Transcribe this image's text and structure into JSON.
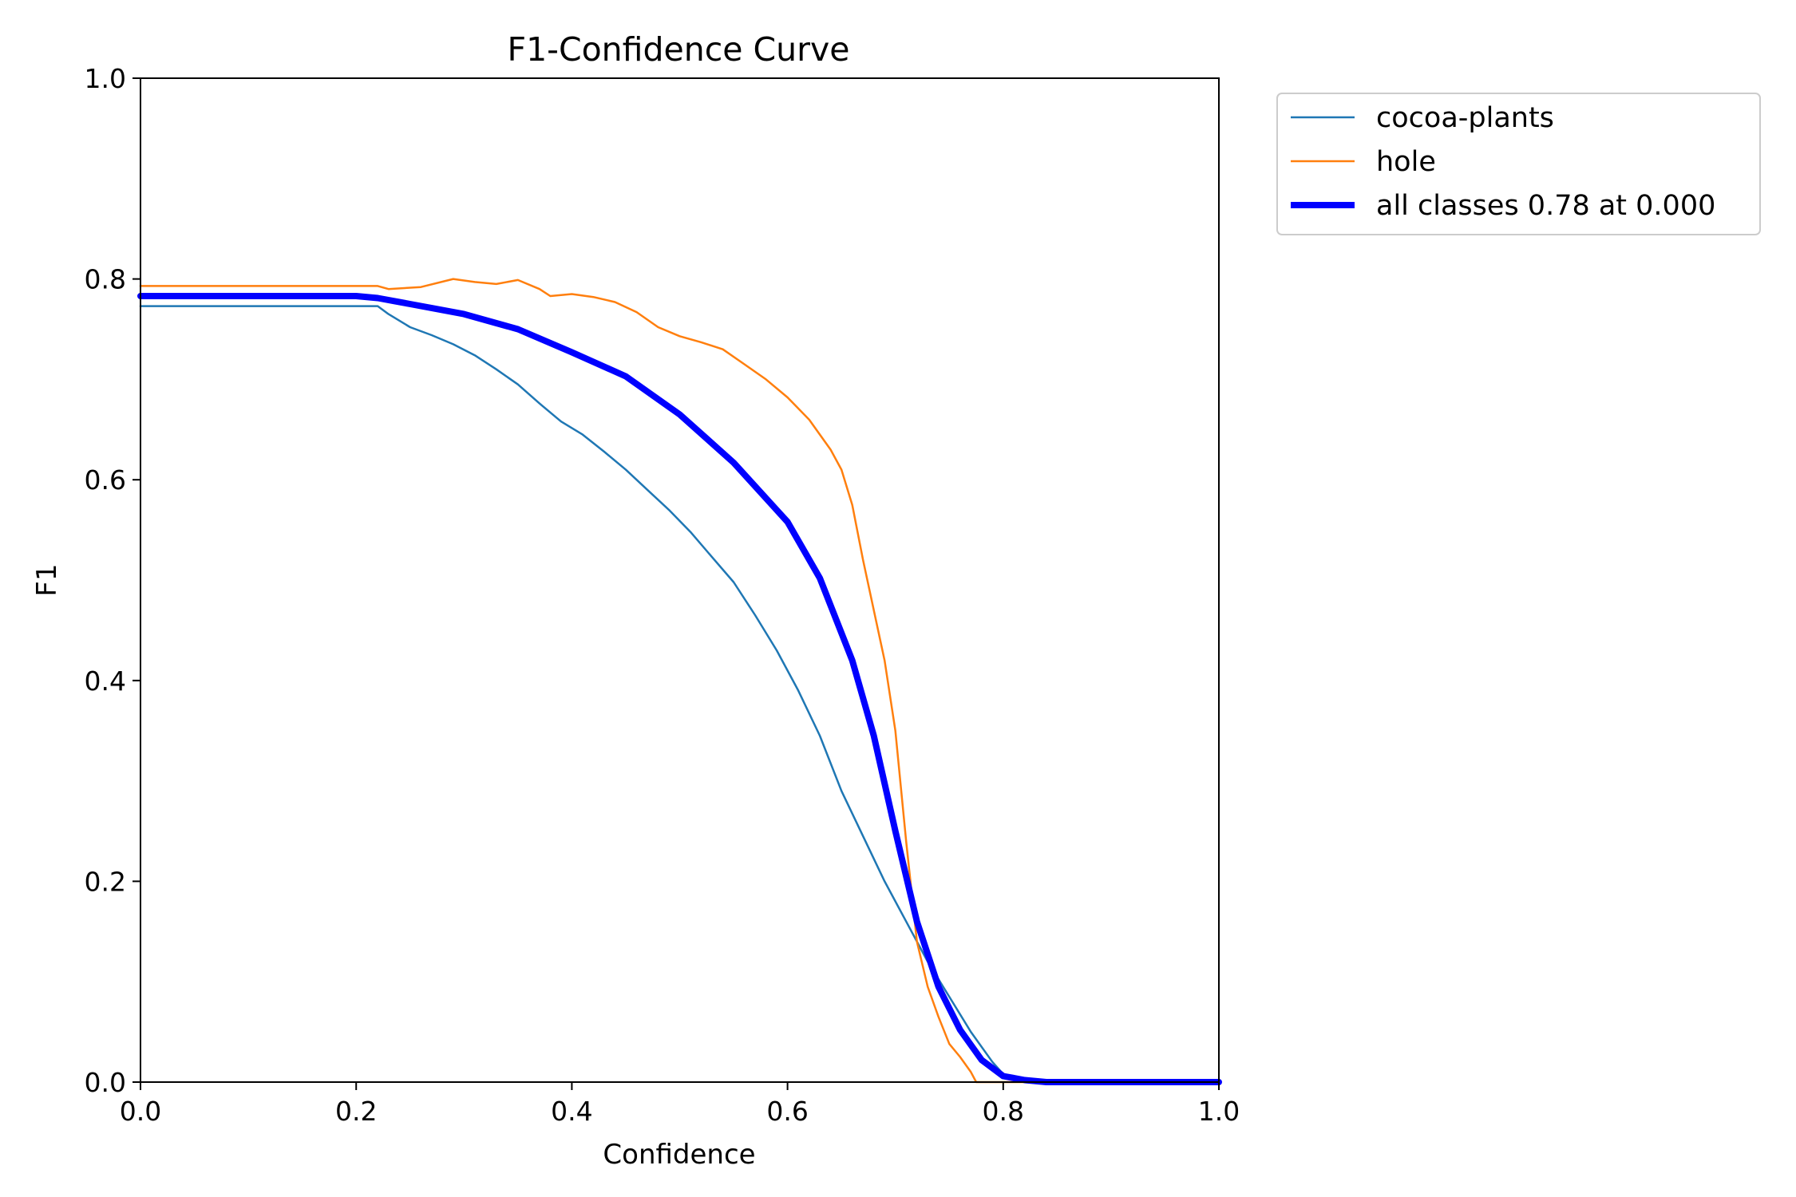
{
  "chart_data": {
    "type": "line",
    "title": "F1-Confidence Curve",
    "xlabel": "Confidence",
    "ylabel": "F1",
    "xlim": [
      0,
      1
    ],
    "ylim": [
      0,
      1
    ],
    "xticks": [
      0.0,
      0.2,
      0.4,
      0.6,
      0.8,
      1.0
    ],
    "yticks": [
      0.0,
      0.2,
      0.4,
      0.6,
      0.8,
      1.0
    ],
    "xtick_labels": [
      "0.0",
      "0.2",
      "0.4",
      "0.6",
      "0.8",
      "1.0"
    ],
    "ytick_labels": [
      "0.0",
      "0.2",
      "0.4",
      "0.6",
      "0.8",
      "1.0"
    ],
    "grid": false,
    "legend_position": "outside-top-right",
    "series": [
      {
        "name": "cocoa-plants",
        "color": "#1f77b4",
        "x": [
          0.0,
          0.22,
          0.23,
          0.25,
          0.27,
          0.29,
          0.31,
          0.33,
          0.35,
          0.37,
          0.39,
          0.41,
          0.43,
          0.45,
          0.47,
          0.49,
          0.51,
          0.53,
          0.55,
          0.57,
          0.59,
          0.61,
          0.63,
          0.65,
          0.67,
          0.69,
          0.71,
          0.73,
          0.75,
          0.77,
          0.79,
          0.8,
          0.82,
          1.0
        ],
        "y": [
          0.773,
          0.773,
          0.765,
          0.752,
          0.744,
          0.735,
          0.724,
          0.71,
          0.695,
          0.676,
          0.658,
          0.645,
          0.628,
          0.61,
          0.59,
          0.57,
          0.548,
          0.523,
          0.498,
          0.465,
          0.43,
          0.39,
          0.345,
          0.29,
          0.245,
          0.2,
          0.16,
          0.12,
          0.085,
          0.05,
          0.02,
          0.008,
          0.0,
          0.0
        ]
      },
      {
        "name": "hole",
        "color": "#ff7f0e",
        "x": [
          0.0,
          0.22,
          0.23,
          0.26,
          0.29,
          0.31,
          0.33,
          0.35,
          0.37,
          0.38,
          0.4,
          0.42,
          0.44,
          0.46,
          0.48,
          0.5,
          0.52,
          0.54,
          0.56,
          0.58,
          0.6,
          0.62,
          0.64,
          0.65,
          0.66,
          0.67,
          0.68,
          0.69,
          0.7,
          0.71,
          0.72,
          0.73,
          0.74,
          0.75,
          0.76,
          0.77,
          0.775,
          1.0
        ],
        "y": [
          0.793,
          0.793,
          0.79,
          0.792,
          0.8,
          0.797,
          0.795,
          0.799,
          0.79,
          0.783,
          0.785,
          0.782,
          0.777,
          0.767,
          0.752,
          0.743,
          0.737,
          0.73,
          0.715,
          0.7,
          0.682,
          0.66,
          0.63,
          0.61,
          0.575,
          0.52,
          0.47,
          0.42,
          0.35,
          0.24,
          0.14,
          0.095,
          0.065,
          0.038,
          0.025,
          0.01,
          0.0,
          0.0
        ]
      },
      {
        "name": "all classes 0.78 at 0.000",
        "color": "#0000ff",
        "x": [
          0.0,
          0.2,
          0.22,
          0.25,
          0.3,
          0.35,
          0.4,
          0.45,
          0.5,
          0.55,
          0.6,
          0.63,
          0.66,
          0.68,
          0.7,
          0.72,
          0.74,
          0.76,
          0.78,
          0.8,
          0.82,
          0.84,
          1.0
        ],
        "y": [
          0.783,
          0.783,
          0.781,
          0.775,
          0.765,
          0.75,
          0.727,
          0.703,
          0.665,
          0.617,
          0.558,
          0.502,
          0.42,
          0.345,
          0.25,
          0.16,
          0.095,
          0.052,
          0.022,
          0.006,
          0.002,
          0.0,
          0.0
        ]
      }
    ]
  }
}
